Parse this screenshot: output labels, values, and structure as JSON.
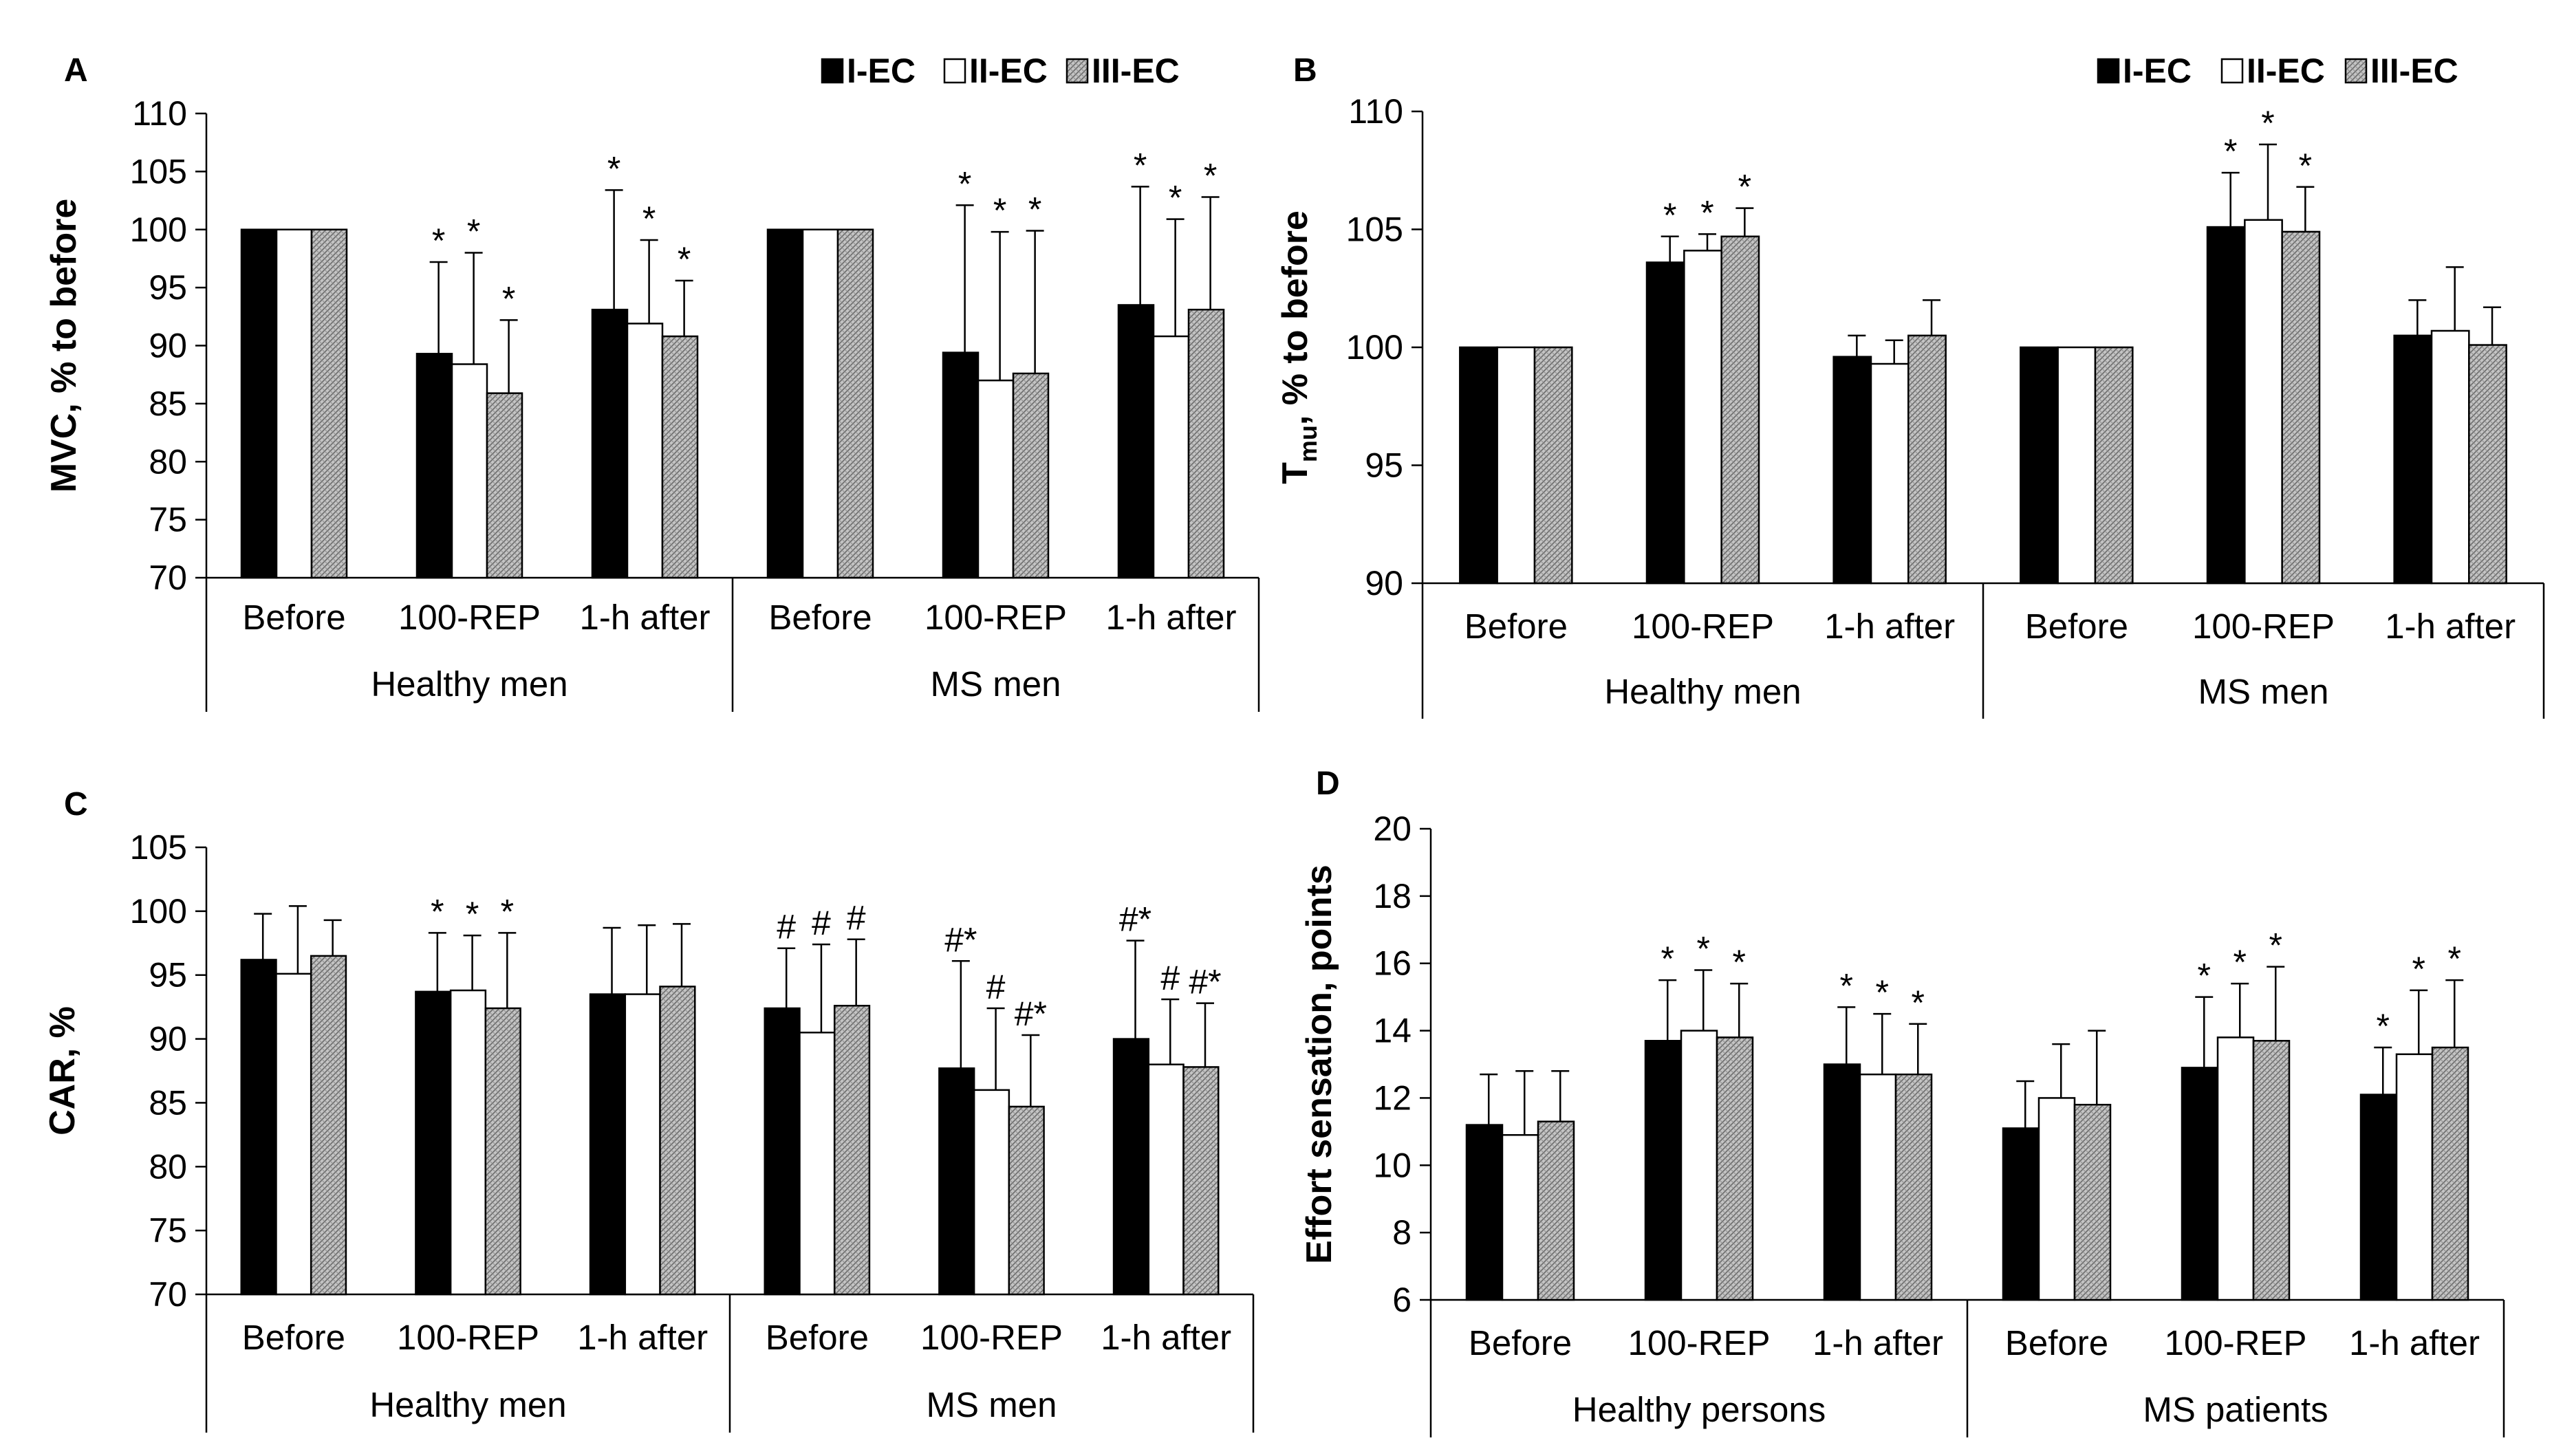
{
  "legend": {
    "series": [
      "I-EC",
      "II-EC",
      "III-EC"
    ],
    "colors": [
      "#000000",
      "#ffffff",
      "#b8b8b8"
    ]
  },
  "chart_data": [
    {
      "panel": "A",
      "type": "bar",
      "ylabel": "MVC, % to before",
      "ylim": [
        70,
        110
      ],
      "yticks": [
        70,
        75,
        80,
        85,
        90,
        95,
        100,
        105,
        110
      ],
      "groups": [
        "Healthy men",
        "MS men"
      ],
      "categories": [
        "Before",
        "100-REP",
        "1-h after",
        "Before",
        "100-REP",
        "1-h after"
      ],
      "series": [
        {
          "name": "I-EC",
          "values": [
            100,
            89.3,
            93.1,
            100,
            89.4,
            93.5
          ],
          "errors": [
            0,
            7.9,
            10.3,
            0,
            12.7,
            10.2
          ],
          "annotations": [
            "",
            "*",
            "*",
            "",
            "*",
            "*"
          ]
        },
        {
          "name": "II-EC",
          "values": [
            100,
            88.4,
            91.9,
            100,
            87.0,
            90.8
          ],
          "errors": [
            0,
            9.6,
            7.2,
            0,
            12.8,
            10.1
          ],
          "annotations": [
            "",
            "*",
            "*",
            "",
            "*",
            "*"
          ]
        },
        {
          "name": "III-EC",
          "values": [
            100,
            85.9,
            90.8,
            100,
            87.6,
            93.1
          ],
          "errors": [
            0,
            6.3,
            4.8,
            0,
            12.3,
            9.7
          ],
          "annotations": [
            "",
            "*",
            "*",
            "",
            "*",
            "*"
          ]
        }
      ]
    },
    {
      "panel": "B",
      "type": "bar",
      "ylabel_main": "T",
      "ylabel_sub": "mu",
      "ylabel_rest": ", % to before",
      "ylim": [
        90,
        110
      ],
      "yticks": [
        90,
        95,
        100,
        105,
        110
      ],
      "groups": [
        "Healthy men",
        "MS men"
      ],
      "categories": [
        "Before",
        "100-REP",
        "1-h after",
        "Before",
        "100-REP",
        "1-h after"
      ],
      "series": [
        {
          "name": "I-EC",
          "values": [
            100,
            103.6,
            99.6,
            100,
            105.1,
            100.5
          ],
          "errors": [
            0,
            1.1,
            0.9,
            0,
            2.3,
            1.5
          ],
          "annotations": [
            "",
            "*",
            "",
            "",
            "*",
            ""
          ]
        },
        {
          "name": "II-EC",
          "values": [
            100,
            104.1,
            99.3,
            100,
            105.4,
            100.7
          ],
          "errors": [
            0,
            0.7,
            1.0,
            0,
            3.2,
            2.7
          ],
          "annotations": [
            "",
            "*",
            "",
            "",
            "*",
            ""
          ]
        },
        {
          "name": "III-EC",
          "values": [
            100,
            104.7,
            100.5,
            100,
            104.9,
            100.1
          ],
          "errors": [
            0,
            1.2,
            1.5,
            0,
            1.9,
            1.6
          ],
          "annotations": [
            "",
            "*",
            "",
            "",
            "*",
            ""
          ]
        }
      ]
    },
    {
      "panel": "C",
      "type": "bar",
      "ylabel": "CAR, %",
      "ylim": [
        70,
        105
      ],
      "yticks": [
        70,
        75,
        80,
        85,
        90,
        95,
        100,
        105
      ],
      "groups": [
        "Healthy men",
        "MS men"
      ],
      "categories": [
        "Before",
        "100-REP",
        "1-h after",
        "Before",
        "100-REP",
        "1-h after"
      ],
      "series": [
        {
          "name": "I-EC",
          "values": [
            96.2,
            93.7,
            93.5,
            92.4,
            87.7,
            90.0
          ],
          "errors": [
            3.6,
            4.6,
            5.2,
            4.7,
            8.4,
            7.7
          ],
          "annotations": [
            "",
            "*",
            "",
            "#",
            "#*",
            "#*"
          ]
        },
        {
          "name": "II-EC",
          "values": [
            95.1,
            93.8,
            93.5,
            90.5,
            86.0,
            88.0
          ],
          "errors": [
            5.3,
            4.3,
            5.4,
            6.9,
            6.4,
            5.1
          ],
          "annotations": [
            "",
            "*",
            "",
            "#",
            "#",
            "#"
          ]
        },
        {
          "name": "III-EC",
          "values": [
            96.5,
            92.4,
            94.1,
            92.6,
            84.7,
            87.8
          ],
          "errors": [
            2.8,
            5.9,
            4.9,
            5.2,
            5.6,
            5.0
          ],
          "annotations": [
            "",
            "*",
            "",
            "#",
            "#*",
            "#*"
          ]
        }
      ]
    },
    {
      "panel": "D",
      "type": "bar",
      "ylabel": "Effort sensation, points",
      "ylim": [
        6,
        20
      ],
      "yticks": [
        6,
        8,
        10,
        12,
        14,
        16,
        18,
        20
      ],
      "groups": [
        "Healthy persons",
        "MS patients"
      ],
      "categories": [
        "Before",
        "100-REP",
        "1-h after",
        "Before",
        "100-REP",
        "1-h after"
      ],
      "series": [
        {
          "name": "I-EC",
          "values": [
            11.2,
            13.7,
            13.0,
            11.1,
            12.9,
            12.1
          ],
          "errors": [
            1.5,
            1.8,
            1.7,
            1.4,
            2.1,
            1.4
          ],
          "annotations": [
            "",
            "*",
            "*",
            "",
            "*",
            "*"
          ]
        },
        {
          "name": "II-EC",
          "values": [
            10.9,
            14.0,
            12.7,
            12.0,
            13.8,
            13.3
          ],
          "errors": [
            1.9,
            1.8,
            1.8,
            1.6,
            1.6,
            1.9
          ],
          "annotations": [
            "",
            "*",
            "*",
            "",
            "*",
            "*"
          ]
        },
        {
          "name": "III-EC",
          "values": [
            11.3,
            13.8,
            12.7,
            11.8,
            13.7,
            13.5
          ],
          "errors": [
            1.5,
            1.6,
            1.5,
            2.2,
            2.2,
            2.0
          ],
          "annotations": [
            "",
            "*",
            "*",
            "",
            "*",
            "*"
          ]
        }
      ]
    }
  ]
}
